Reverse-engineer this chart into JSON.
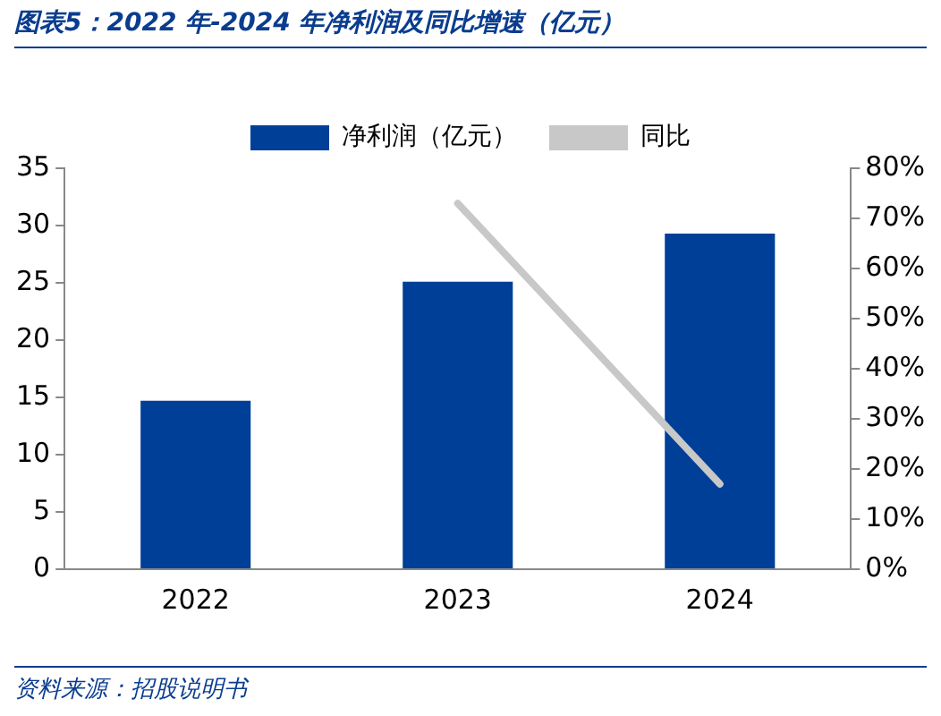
{
  "chart_data": {
    "type": "bar",
    "title": "图表5：2022 年-2024 年净利润及同比增速（亿元）",
    "categories": [
      "2022",
      "2023",
      "2024"
    ],
    "series": [
      {
        "name": "净利润（亿元）",
        "color": "#003f97",
        "values": [
          14.7,
          25.1,
          29.3
        ]
      },
      {
        "name": "同比",
        "type": "line",
        "axis": "y2",
        "color": "#c8c8c8",
        "values": [
          null,
          73,
          17
        ]
      }
    ],
    "ylim": [
      0,
      35
    ],
    "yticks": [
      0,
      5,
      10,
      15,
      20,
      25,
      30,
      35
    ],
    "y2lim": [
      0,
      80
    ],
    "y2ticks": [
      {
        "value": 0,
        "label": "0%"
      },
      {
        "value": 10,
        "label": "10%"
      },
      {
        "value": 20,
        "label": "20%"
      },
      {
        "value": 30,
        "label": "30%"
      },
      {
        "value": 40,
        "label": "40%"
      },
      {
        "value": 50,
        "label": "50%"
      },
      {
        "value": 60,
        "label": "60%"
      },
      {
        "value": 70,
        "label": "70%"
      },
      {
        "value": 80,
        "label": "80%"
      }
    ],
    "grid": false,
    "legend": "top",
    "marker": "none",
    "annotations": [
      "资料来源：招股说明书"
    ]
  }
}
